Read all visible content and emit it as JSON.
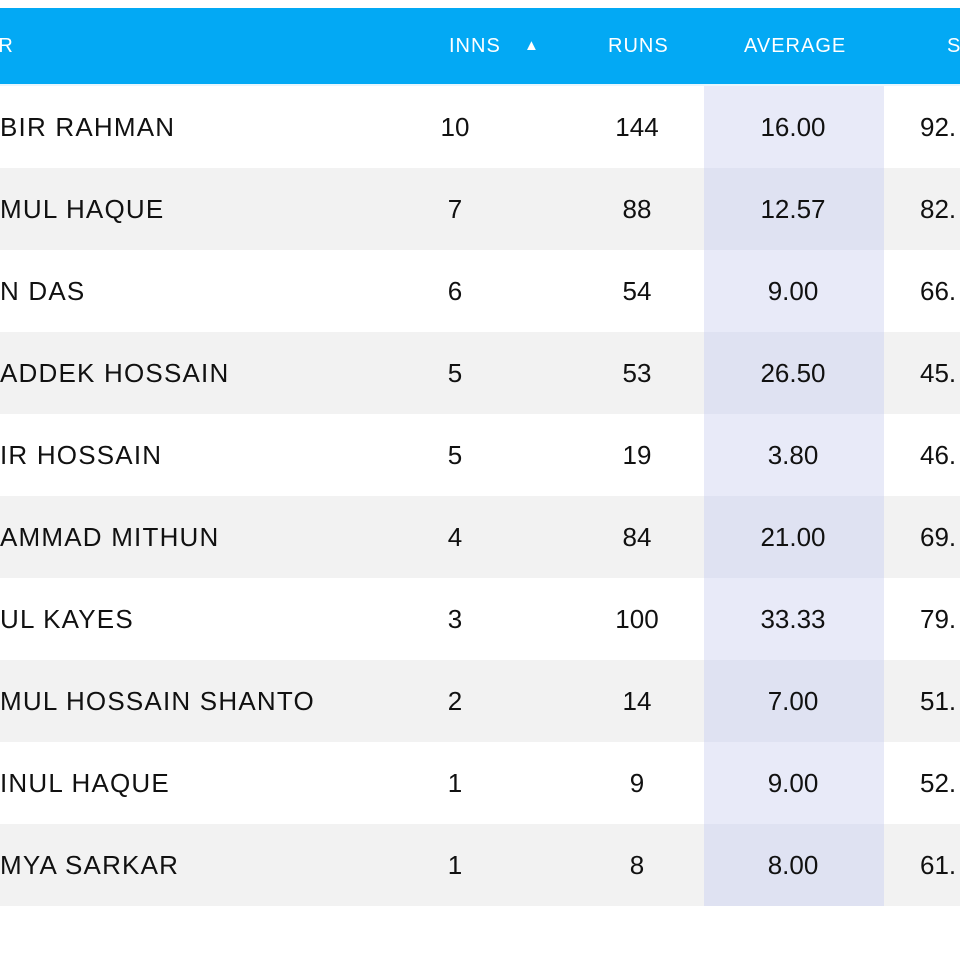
{
  "table": {
    "headers": {
      "player": "ER",
      "inns": "INNS",
      "sort_indicator": "▲",
      "runs": "RUNS",
      "average": "AVERAGE",
      "sr": "S"
    },
    "rows": [
      {
        "name": "BIR RAHMAN",
        "inns": "10",
        "runs": "144",
        "average": "16.00",
        "sr": "92."
      },
      {
        "name": "MUL HAQUE",
        "inns": "7",
        "runs": "88",
        "average": "12.57",
        "sr": "82."
      },
      {
        "name": "N DAS",
        "inns": "6",
        "runs": "54",
        "average": "9.00",
        "sr": "66."
      },
      {
        "name": "ADDEK HOSSAIN",
        "inns": "5",
        "runs": "53",
        "average": "26.50",
        "sr": "45."
      },
      {
        "name": "IR HOSSAIN",
        "inns": "5",
        "runs": "19",
        "average": "3.80",
        "sr": "46."
      },
      {
        "name": "AMMAD MITHUN",
        "inns": "4",
        "runs": "84",
        "average": "21.00",
        "sr": "69."
      },
      {
        "name": "UL KAYES",
        "inns": "3",
        "runs": "100",
        "average": "33.33",
        "sr": "79."
      },
      {
        "name": "MUL HOSSAIN SHANTO",
        "inns": "2",
        "runs": "14",
        "average": "7.00",
        "sr": "51."
      },
      {
        "name": "INUL HAQUE",
        "inns": "1",
        "runs": "9",
        "average": "9.00",
        "sr": "52."
      },
      {
        "name": "MYA SARKAR",
        "inns": "1",
        "runs": "8",
        "average": "8.00",
        "sr": "61."
      }
    ]
  },
  "footer": {
    "partial_text": "...."
  },
  "colors": {
    "header_bg": "#03a9f4",
    "header_text": "#ffffff",
    "row_odd": "#ffffff",
    "row_even": "#f2f2f2",
    "average_highlight_odd": "#e8eaf8",
    "average_highlight_even": "#dfe2f2"
  }
}
